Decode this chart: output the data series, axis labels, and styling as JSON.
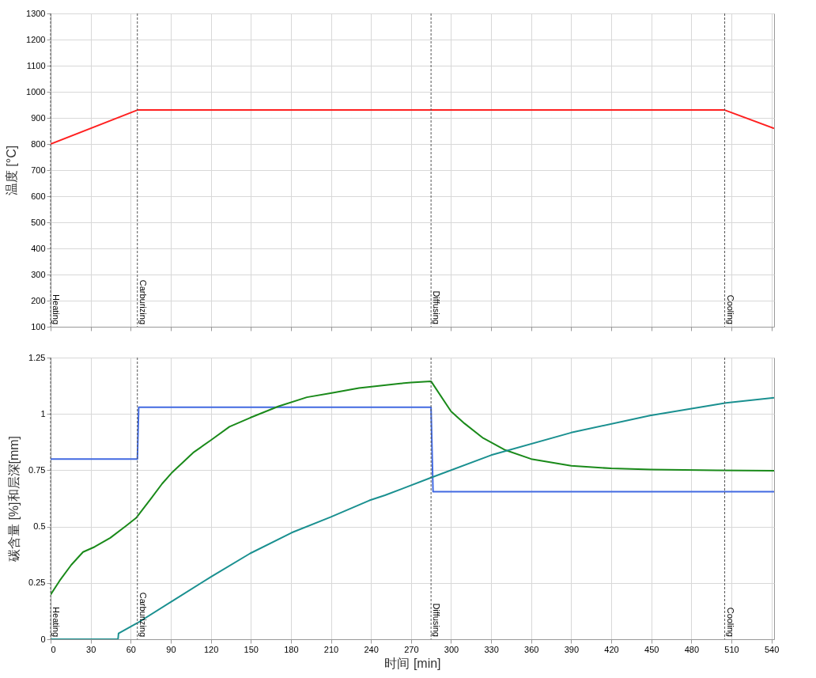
{
  "chart_data": [
    {
      "type": "line",
      "ylabel": "温度 [°C]",
      "xlim": [
        0,
        542
      ],
      "ylim": [
        100,
        1300
      ],
      "xticks": [
        0,
        30,
        60,
        90,
        120,
        150,
        180,
        210,
        240,
        270,
        300,
        330,
        360,
        390,
        420,
        450,
        480,
        510,
        540
      ],
      "yticks": [
        100,
        200,
        300,
        400,
        500,
        600,
        700,
        800,
        900,
        1000,
        1100,
        1200,
        1300
      ],
      "tick_labels": "y",
      "grid": true,
      "line_style": "solid",
      "series": [
        {
          "color": "#ff2020",
          "x": [
            0,
            65,
            505,
            542
          ],
          "values": [
            800,
            930,
            930,
            860
          ]
        }
      ],
      "ref_lines": [
        {
          "axis": "x",
          "value": 0,
          "label": "Heating",
          "color": "#555555",
          "line_style": "dashed"
        },
        {
          "axis": "x",
          "value": 65,
          "label": "Carburizing",
          "color": "#555555",
          "line_style": "dashed"
        },
        {
          "axis": "x",
          "value": 285,
          "label": "Diffusing",
          "color": "#555555",
          "line_style": "dashed"
        },
        {
          "axis": "x",
          "value": 505,
          "label": "Cooling",
          "color": "#555555",
          "line_style": "dashed"
        }
      ]
    },
    {
      "type": "line",
      "xlabel": "时间 [min]",
      "ylabel": "碳含量 [%]和层深[mm]",
      "xlim": [
        0,
        542
      ],
      "ylim": [
        0,
        1.25
      ],
      "xticks": [
        0,
        30,
        60,
        90,
        120,
        150,
        180,
        210,
        240,
        270,
        300,
        330,
        360,
        390,
        420,
        450,
        480,
        510,
        540
      ],
      "yticks": [
        0,
        0.25,
        0.5,
        0.75,
        1,
        1.25
      ],
      "grid": true,
      "line_style": "solid",
      "series": [
        {
          "color": "#4169e1",
          "x": [
            0,
            65,
            66,
            285,
            286.5,
            542
          ],
          "values": [
            0.8,
            0.8,
            1.03,
            1.03,
            0.655,
            0.655
          ]
        },
        {
          "color": "#1a8a1a",
          "x": [
            0,
            6.8,
            15.5,
            24.3,
            33,
            44.7,
            56.3,
            64,
            75.7,
            83.5,
            91.3,
            106.8,
            120.4,
            134,
            149.5,
            170.9,
            192,
            209.7,
            231,
            262,
            270,
            285,
            300,
            310,
            324,
            340,
            360,
            390,
            420,
            450,
            499,
            542
          ],
          "values": [
            0.198,
            0.26,
            0.33,
            0.387,
            0.41,
            0.45,
            0.502,
            0.538,
            0.628,
            0.69,
            0.742,
            0.828,
            0.885,
            0.943,
            0.983,
            1.034,
            1.074,
            1.092,
            1.115,
            1.135,
            1.139,
            1.145,
            1.011,
            0.958,
            0.893,
            0.841,
            0.8,
            0.77,
            0.758,
            0.753,
            0.75,
            0.748
          ]
        },
        {
          "color": "#1a9090",
          "x": [
            0,
            50.5,
            50.9,
            65,
            91.3,
            120.4,
            149.5,
            180.6,
            209.7,
            238.8,
            250.5,
            285,
            330,
            390,
            449,
            506,
            542
          ],
          "values": [
            0,
            0,
            0.026,
            0.072,
            0.17,
            0.278,
            0.381,
            0.473,
            0.542,
            0.616,
            0.639,
            0.717,
            0.817,
            0.917,
            0.993,
            1.049,
            1.072
          ]
        }
      ],
      "ref_lines": [
        {
          "axis": "x",
          "value": 0,
          "label": "Heating",
          "color": "#555555",
          "line_style": "dashed"
        },
        {
          "axis": "x",
          "value": 65,
          "label": "Carburizing",
          "color": "#555555",
          "line_style": "dashed"
        },
        {
          "axis": "x",
          "value": 285,
          "label": "Diffusing",
          "color": "#555555",
          "line_style": "dashed"
        },
        {
          "axis": "x",
          "value": 505,
          "label": "Cooling",
          "color": "#555555",
          "line_style": "dashed"
        }
      ]
    }
  ]
}
